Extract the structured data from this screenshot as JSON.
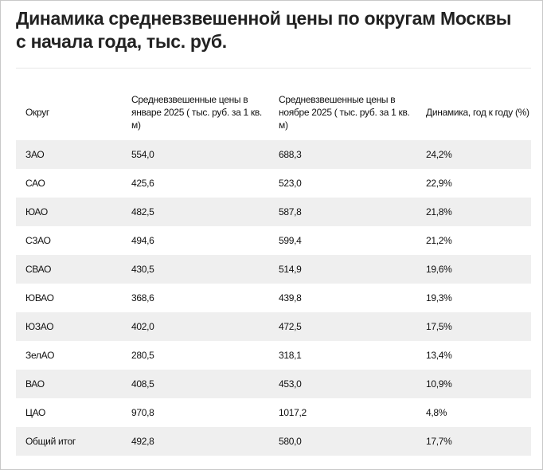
{
  "title": "Динамика средневзвешенной цены по округам Москвы с начала года, тыс. руб.",
  "table": {
    "headers": [
      "Округ",
      "Средневзвешенные цены в январе 2025 ( тыс. руб. за 1 кв. м)",
      "Средневзвешенные цены в ноябре 2025 ( тыс. руб. за 1 кв. м)",
      "Динамика, год к году (%)"
    ],
    "rows": [
      [
        "ЗАО",
        "554,0",
        "688,3",
        "24,2%"
      ],
      [
        "САО",
        "425,6",
        "523,0",
        "22,9%"
      ],
      [
        "ЮАО",
        "482,5",
        "587,8",
        "21,8%"
      ],
      [
        "СЗАО",
        "494,6",
        "599,4",
        "21,2%"
      ],
      [
        "СВАО",
        "430,5",
        "514,9",
        "19,6%"
      ],
      [
        "ЮВАО",
        "368,6",
        "439,8",
        "19,3%"
      ],
      [
        "ЮЗАО",
        "402,0",
        "472,5",
        "17,5%"
      ],
      [
        "ЗелАО",
        "280,5",
        "318,1",
        "13,4%"
      ],
      [
        "ВАО",
        "408,5",
        "453,0",
        "10,9%"
      ],
      [
        "ЦАО",
        "970,8",
        "1017,2",
        "4,8%"
      ],
      [
        "Общий итог",
        "492,8",
        "580,0",
        "17,7%"
      ]
    ]
  }
}
